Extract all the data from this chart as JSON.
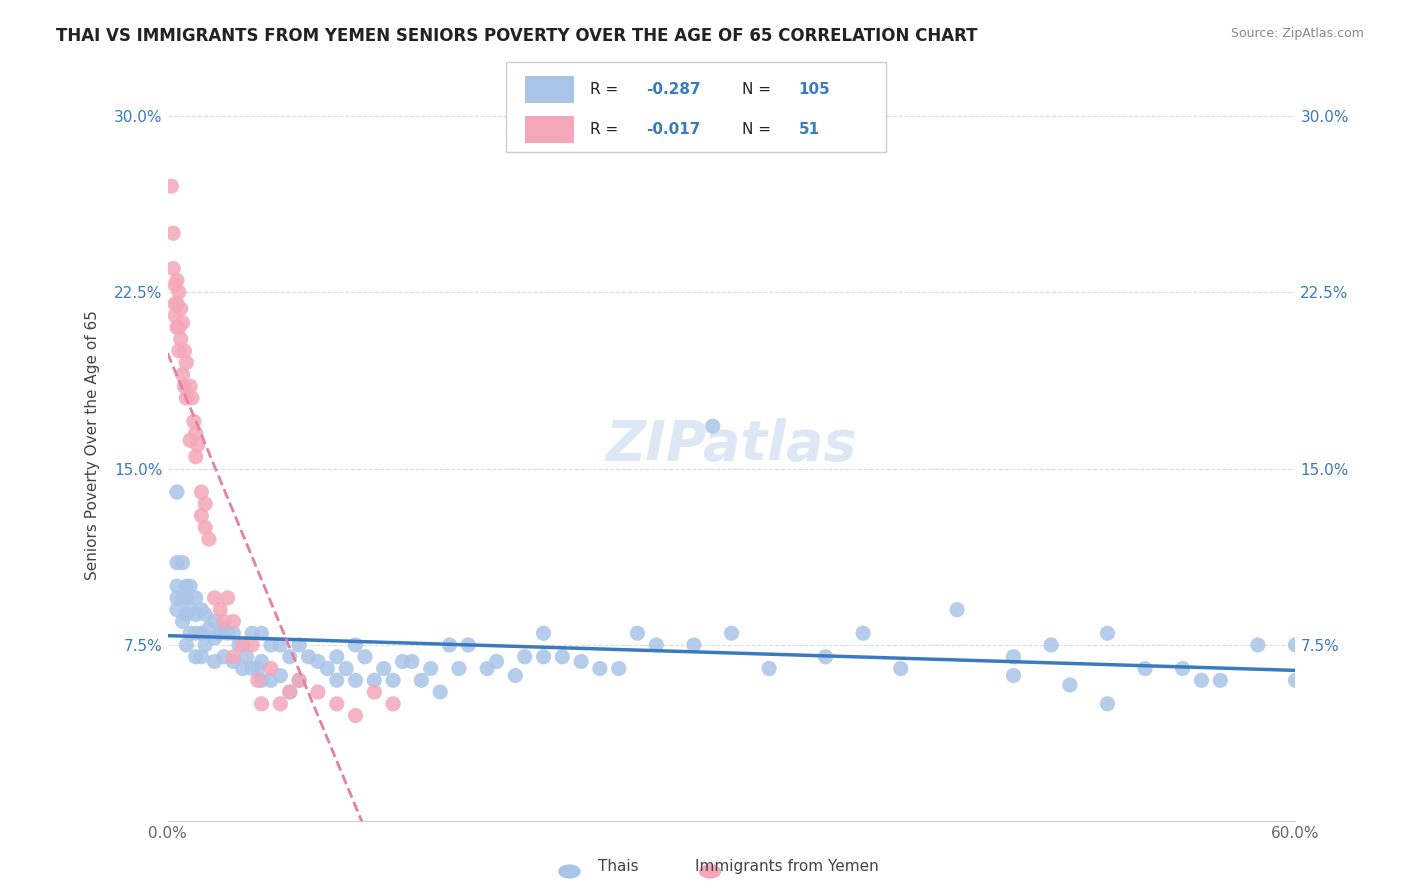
{
  "title": "THAI VS IMMIGRANTS FROM YEMEN SENIORS POVERTY OVER THE AGE OF 65 CORRELATION CHART",
  "source": "Source: ZipAtlas.com",
  "ylabel": "Seniors Poverty Over the Age of 65",
  "xlabel": "",
  "xlim": [
    0.0,
    0.6
  ],
  "ylim": [
    0.0,
    0.32
  ],
  "xticks": [
    0.0,
    0.1,
    0.2,
    0.3,
    0.4,
    0.5,
    0.6
  ],
  "xticklabels": [
    "0.0%",
    "",
    "",
    "",
    "",
    "",
    "60.0%"
  ],
  "yticks": [
    0.0,
    0.075,
    0.15,
    0.225,
    0.3
  ],
  "yticklabels": [
    "",
    "7.5%",
    "15.0%",
    "22.5%",
    "30.0%"
  ],
  "background_color": "#ffffff",
  "grid_color": "#dddddd",
  "thai_color": "#aac4e8",
  "yemen_color": "#f4a7b9",
  "thai_line_color": "#3a7bbf",
  "yemen_line_color": "#e87fa0",
  "watermark": "ZIPatlas",
  "legend_R_thai": "R = -0.287",
  "legend_N_thai": "N = 105",
  "legend_R_yemen": "R = -0.017",
  "legend_N_yemen": "N =  51",
  "thai_R": -0.287,
  "thai_N": 105,
  "yemen_R": -0.017,
  "yemen_N": 51,
  "thai_x": [
    0.005,
    0.005,
    0.005,
    0.005,
    0.005,
    0.008,
    0.008,
    0.008,
    0.01,
    0.01,
    0.01,
    0.01,
    0.012,
    0.012,
    0.012,
    0.015,
    0.015,
    0.015,
    0.015,
    0.018,
    0.018,
    0.018,
    0.02,
    0.02,
    0.022,
    0.025,
    0.025,
    0.025,
    0.028,
    0.03,
    0.03,
    0.032,
    0.035,
    0.035,
    0.038,
    0.04,
    0.04,
    0.042,
    0.045,
    0.045,
    0.048,
    0.05,
    0.05,
    0.05,
    0.055,
    0.055,
    0.06,
    0.06,
    0.065,
    0.065,
    0.07,
    0.07,
    0.075,
    0.08,
    0.085,
    0.09,
    0.09,
    0.095,
    0.1,
    0.1,
    0.105,
    0.11,
    0.115,
    0.12,
    0.125,
    0.13,
    0.135,
    0.14,
    0.145,
    0.15,
    0.155,
    0.16,
    0.17,
    0.175,
    0.185,
    0.19,
    0.2,
    0.2,
    0.21,
    0.22,
    0.23,
    0.24,
    0.25,
    0.26,
    0.28,
    0.29,
    0.3,
    0.32,
    0.35,
    0.37,
    0.39,
    0.42,
    0.45,
    0.47,
    0.5,
    0.52,
    0.54,
    0.56,
    0.58,
    0.6,
    0.55,
    0.6,
    0.45,
    0.5,
    0.48
  ],
  "thai_y": [
    0.14,
    0.11,
    0.1,
    0.095,
    0.09,
    0.11,
    0.095,
    0.085,
    0.1,
    0.095,
    0.088,
    0.075,
    0.1,
    0.09,
    0.08,
    0.095,
    0.088,
    0.08,
    0.07,
    0.09,
    0.08,
    0.07,
    0.088,
    0.075,
    0.082,
    0.085,
    0.078,
    0.068,
    0.08,
    0.082,
    0.07,
    0.08,
    0.08,
    0.068,
    0.075,
    0.075,
    0.065,
    0.07,
    0.08,
    0.065,
    0.065,
    0.08,
    0.068,
    0.06,
    0.075,
    0.06,
    0.075,
    0.062,
    0.07,
    0.055,
    0.075,
    0.06,
    0.07,
    0.068,
    0.065,
    0.07,
    0.06,
    0.065,
    0.075,
    0.06,
    0.07,
    0.06,
    0.065,
    0.06,
    0.068,
    0.068,
    0.06,
    0.065,
    0.055,
    0.075,
    0.065,
    0.075,
    0.065,
    0.068,
    0.062,
    0.07,
    0.07,
    0.08,
    0.07,
    0.068,
    0.065,
    0.065,
    0.08,
    0.075,
    0.075,
    0.168,
    0.08,
    0.065,
    0.07,
    0.08,
    0.065,
    0.09,
    0.07,
    0.075,
    0.08,
    0.065,
    0.065,
    0.06,
    0.075,
    0.06,
    0.06,
    0.075,
    0.062,
    0.05,
    0.058
  ],
  "yemen_x": [
    0.002,
    0.003,
    0.003,
    0.004,
    0.004,
    0.004,
    0.005,
    0.005,
    0.005,
    0.006,
    0.006,
    0.006,
    0.007,
    0.007,
    0.008,
    0.008,
    0.009,
    0.009,
    0.01,
    0.01,
    0.012,
    0.012,
    0.013,
    0.014,
    0.015,
    0.015,
    0.016,
    0.018,
    0.018,
    0.02,
    0.02,
    0.022,
    0.025,
    0.028,
    0.03,
    0.032,
    0.035,
    0.035,
    0.04,
    0.045,
    0.048,
    0.05,
    0.055,
    0.06,
    0.065,
    0.07,
    0.08,
    0.09,
    0.1,
    0.11,
    0.12
  ],
  "yemen_y": [
    0.27,
    0.25,
    0.235,
    0.228,
    0.22,
    0.215,
    0.23,
    0.22,
    0.21,
    0.225,
    0.21,
    0.2,
    0.218,
    0.205,
    0.212,
    0.19,
    0.2,
    0.185,
    0.195,
    0.18,
    0.185,
    0.162,
    0.18,
    0.17,
    0.165,
    0.155,
    0.16,
    0.14,
    0.13,
    0.135,
    0.125,
    0.12,
    0.095,
    0.09,
    0.085,
    0.095,
    0.085,
    0.07,
    0.075,
    0.075,
    0.06,
    0.05,
    0.065,
    0.05,
    0.055,
    0.06,
    0.055,
    0.05,
    0.045,
    0.055,
    0.05
  ]
}
